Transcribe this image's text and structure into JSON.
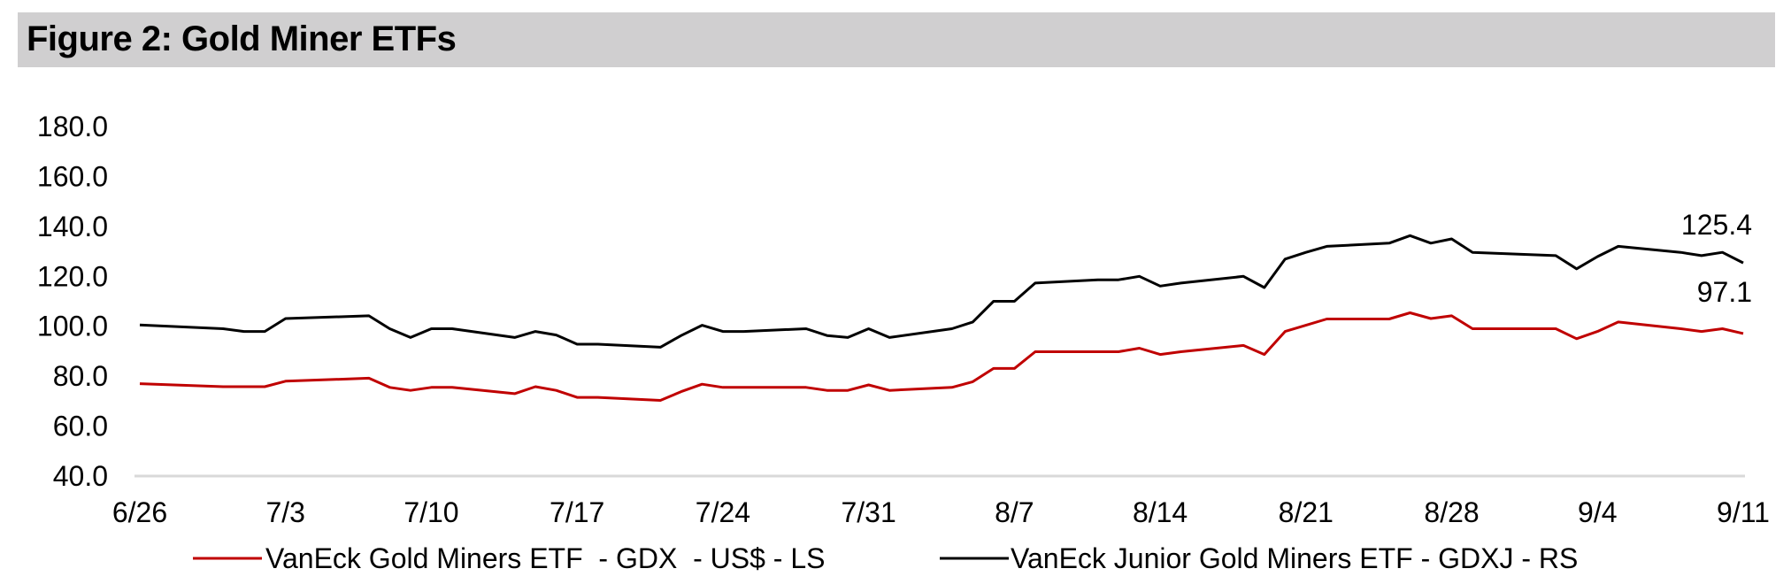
{
  "figure_title": "Figure 2: Gold Miner ETFs",
  "colors": {
    "gdx": "#c00000",
    "gdxj": "#000000",
    "axis": "#d9d9d9",
    "title_bg": "#d0cfd0"
  },
  "chart_data": {
    "type": "line",
    "title": "Figure 2: Gold Miner ETFs",
    "xlabel": "",
    "ylabel": "",
    "ylim": [
      40,
      180
    ],
    "y_ticks": [
      "40.0",
      "60.0",
      "80.0",
      "100.0",
      "120.0",
      "140.0",
      "160.0",
      "180.0"
    ],
    "x_ticks": [
      "6/26",
      "7/3",
      "7/10",
      "7/17",
      "7/24",
      "7/31",
      "8/7",
      "8/14",
      "8/21",
      "8/28",
      "9/4",
      "9/11"
    ],
    "x": [
      "6/26",
      "6/30",
      "7/1",
      "7/2",
      "7/3",
      "7/7",
      "7/8",
      "7/9",
      "7/10",
      "7/11",
      "7/14",
      "7/15",
      "7/16",
      "7/17",
      "7/18",
      "7/21",
      "7/22",
      "7/23",
      "7/24",
      "7/25",
      "7/28",
      "7/29",
      "7/30",
      "7/31",
      "8/1",
      "8/4",
      "8/5",
      "8/6",
      "8/7",
      "8/8",
      "8/11",
      "8/12",
      "8/13",
      "8/14",
      "8/15",
      "8/18",
      "8/19",
      "8/20",
      "8/21",
      "8/22",
      "8/25",
      "8/26",
      "8/27",
      "8/28",
      "8/29",
      "9/2",
      "9/3",
      "9/4",
      "9/5",
      "9/8",
      "9/9",
      "9/10",
      "9/11"
    ],
    "grid": false,
    "legend_position": "bottom",
    "series": [
      {
        "name": "VanEck Gold Miners ETF  - GDX  - US$ - LS",
        "color": "#c00000",
        "end_label": "97.1",
        "values": [
          77.0,
          75.8,
          75.8,
          75.8,
          78.0,
          79.2,
          75.5,
          74.3,
          75.5,
          75.5,
          73.0,
          75.8,
          74.3,
          71.5,
          71.5,
          70.3,
          73.8,
          76.8,
          75.5,
          75.5,
          75.5,
          74.3,
          74.3,
          76.5,
          74.3,
          75.5,
          77.8,
          83.1,
          83.1,
          89.8,
          89.8,
          89.8,
          91.2,
          88.7,
          89.8,
          92.3,
          88.7,
          97.9,
          100.4,
          102.9,
          102.9,
          105.4,
          103.1,
          104.2,
          99.0,
          99.0,
          95.0,
          97.9,
          101.7,
          99.0,
          97.9,
          99.0,
          97.1
        ]
      },
      {
        "name": "VanEck Junior Gold Miners ETF - GDXJ - RS",
        "color": "#000000",
        "end_label": "125.4",
        "values": [
          100.5,
          99.0,
          97.9,
          97.9,
          103.1,
          104.2,
          99.0,
          95.5,
          99.0,
          99.0,
          95.5,
          97.9,
          96.5,
          92.8,
          92.8,
          91.6,
          96.3,
          100.4,
          97.9,
          97.9,
          99.0,
          96.3,
          95.5,
          99.0,
          95.5,
          99.0,
          101.7,
          110.0,
          110.0,
          117.3,
          118.6,
          118.6,
          120.0,
          116.1,
          117.3,
          120.0,
          115.5,
          126.9,
          129.6,
          132.0,
          133.3,
          136.3,
          133.3,
          135.0,
          129.6,
          128.3,
          123.0,
          127.9,
          132.0,
          129.6,
          128.3,
          129.6,
          125.4
        ]
      }
    ]
  }
}
